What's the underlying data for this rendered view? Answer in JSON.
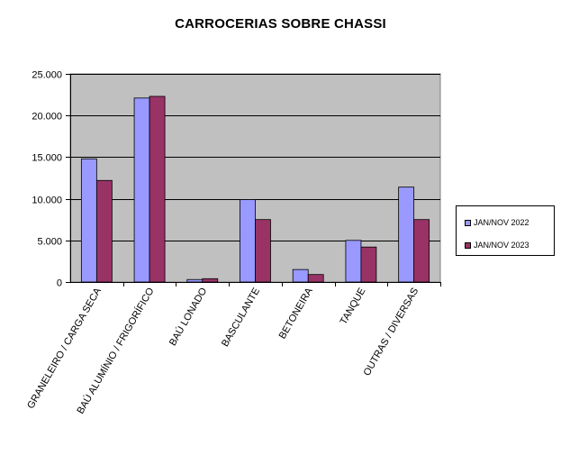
{
  "chart_data": {
    "type": "bar",
    "title": "CARROCERIAS SOBRE CHASSI",
    "xlabel": "",
    "ylabel": "",
    "ylim": [
      0,
      25000
    ],
    "y_ticks": [
      "0",
      "5.000",
      "10.000",
      "15.000",
      "20.000",
      "25.000"
    ],
    "y_tick_values": [
      0,
      5000,
      10000,
      15000,
      20000,
      25000
    ],
    "categories": [
      "GRANELEIRO / CARGA SECA",
      "BAÚ ALUMÍNIO / FRIGORÍFICO",
      "BAÚ LONADO",
      "BASCULANTE",
      "BETONEIRA",
      "TANQUE",
      "OUTRAS / DIVERSAS"
    ],
    "series": [
      {
        "name": "JAN/NOV 2022",
        "color": "#9999FF",
        "values": [
          14800,
          22100,
          300,
          9900,
          1500,
          5000,
          11400
        ]
      },
      {
        "name": "JAN/NOV 2023",
        "color": "#993366",
        "values": [
          12200,
          22300,
          400,
          7500,
          900,
          4200,
          7500
        ]
      }
    ],
    "grid": true,
    "plot_background": "#C0C0C0",
    "legend_position": "right"
  }
}
